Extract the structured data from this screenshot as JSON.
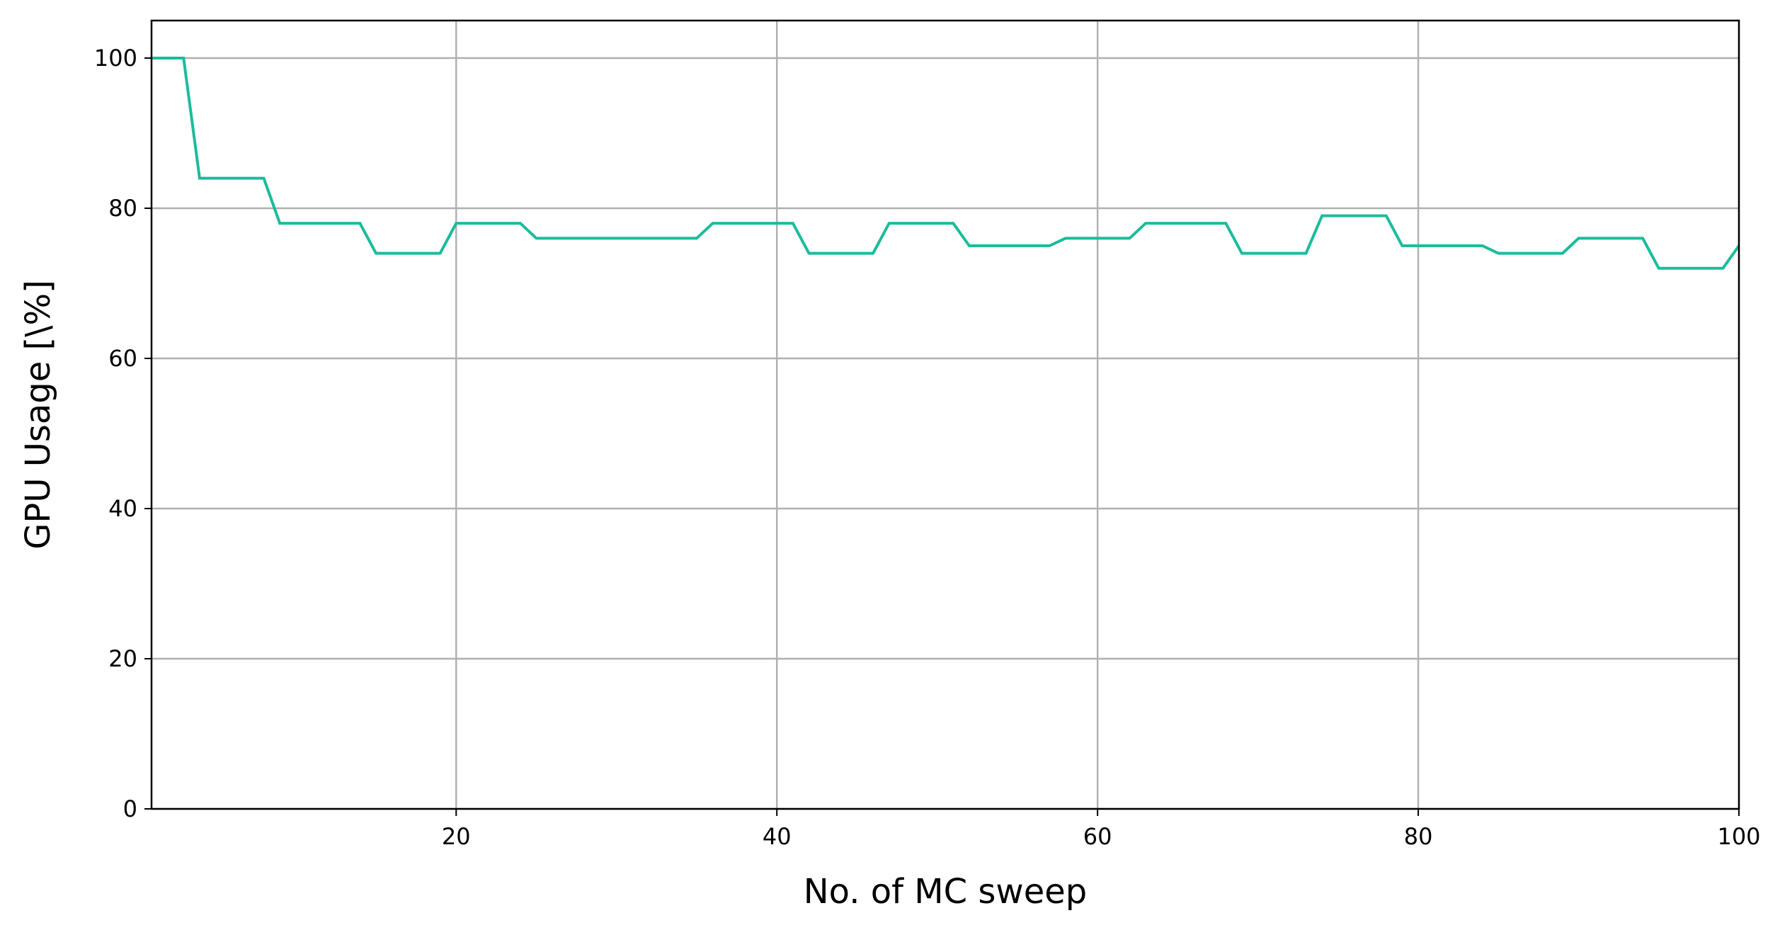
{
  "chart_data": {
    "type": "line",
    "title": "",
    "xlabel": "No. of MC sweep",
    "ylabel": "GPU Usage [\\%]",
    "xlim": [
      1,
      100
    ],
    "ylim": [
      0,
      105
    ],
    "xticks": [
      20,
      40,
      60,
      80,
      100
    ],
    "yticks": [
      0,
      20,
      40,
      60,
      80,
      100
    ],
    "grid": true,
    "legend": "none",
    "series": [
      {
        "color": "#1abc9c",
        "x": [
          1,
          2,
          3,
          4,
          5,
          6,
          7,
          8,
          9,
          10,
          11,
          12,
          13,
          14,
          15,
          16,
          17,
          18,
          19,
          20,
          21,
          22,
          23,
          24,
          25,
          26,
          27,
          28,
          29,
          30,
          31,
          32,
          33,
          34,
          35,
          36,
          37,
          38,
          39,
          40,
          41,
          42,
          43,
          44,
          45,
          46,
          47,
          48,
          49,
          50,
          51,
          52,
          53,
          54,
          55,
          56,
          57,
          58,
          59,
          60,
          61,
          62,
          63,
          64,
          65,
          66,
          67,
          68,
          69,
          70,
          71,
          72,
          73,
          74,
          75,
          76,
          77,
          78,
          79,
          80,
          81,
          82,
          83,
          84,
          85,
          86,
          87,
          88,
          89,
          90,
          91,
          92,
          93,
          94,
          95,
          96,
          97,
          98,
          99,
          100
        ],
        "y": [
          100,
          100,
          100,
          84,
          84,
          84,
          84,
          84,
          78,
          78,
          78,
          78,
          78,
          78,
          74,
          74,
          74,
          74,
          74,
          78,
          78,
          78,
          78,
          78,
          76,
          76,
          76,
          76,
          76,
          76,
          76,
          76,
          76,
          76,
          76,
          78,
          78,
          78,
          78,
          78,
          78,
          74,
          74,
          74,
          74,
          74,
          78,
          78,
          78,
          78,
          78,
          75,
          75,
          75,
          75,
          75,
          75,
          76,
          76,
          76,
          76,
          76,
          78,
          78,
          78,
          78,
          78,
          78,
          74,
          74,
          74,
          74,
          74,
          79,
          79,
          79,
          79,
          79,
          75,
          75,
          75,
          75,
          75,
          75,
          74,
          74,
          74,
          74,
          74,
          76,
          76,
          76,
          76,
          76,
          72,
          72,
          72,
          72,
          72,
          75
        ]
      }
    ]
  }
}
